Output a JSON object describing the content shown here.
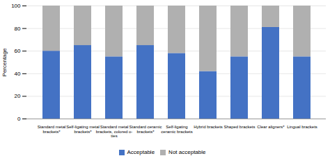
{
  "chart_data": {
    "type": "bar",
    "stacked": true,
    "categories": [
      "Standard metal\nbrackets*",
      "Self-ligating metal\nbrackets*",
      "Standard metal\nbrackets, colored o-\nties",
      "Standard ceramic\nbrackets*",
      "Self-ligating\nceramic brackets",
      "Hybrid brackets",
      "Shaped brackets",
      "Clear aligners*",
      "Lingual brackets"
    ],
    "series": [
      {
        "name": "Acceptable",
        "color": "#4472C4",
        "values": [
          60,
          65,
          55,
          65,
          58,
          42,
          55,
          81,
          55
        ]
      },
      {
        "name": "Not acceptable",
        "color": "#B0B0B0",
        "values": [
          40,
          35,
          45,
          35,
          42,
          58,
          45,
          19,
          45
        ]
      }
    ],
    "ylabel": "Percentage",
    "ylim": [
      0,
      100
    ],
    "yticks": [
      0,
      20,
      40,
      60,
      80,
      100
    ],
    "grid": true,
    "legend": "bottom"
  }
}
